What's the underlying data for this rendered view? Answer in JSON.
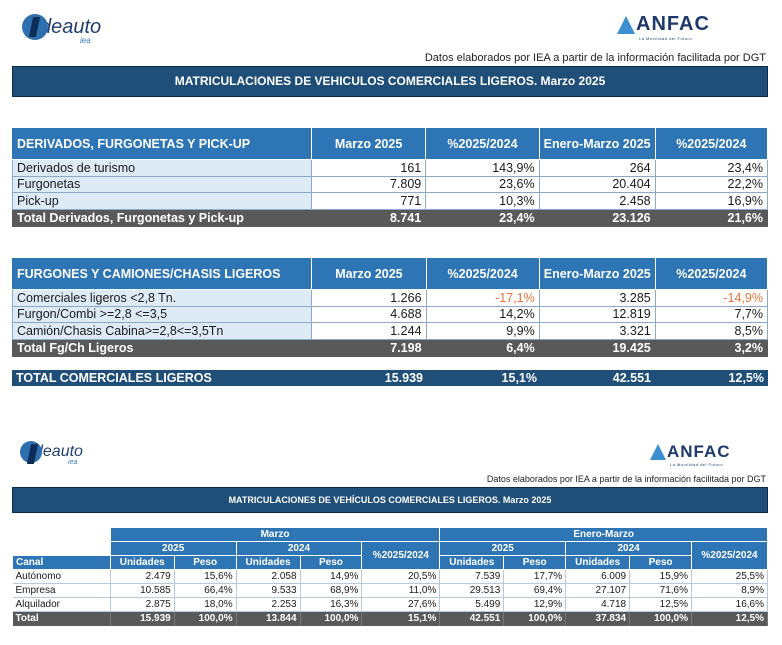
{
  "top": {
    "logo_left": {
      "word": "deauto",
      "sub": "iea"
    },
    "logo_right": {
      "word": "ANFAC",
      "tagline": "La Movilidad del Futuro"
    },
    "source_note": "Datos elaborados por IEA a partir de la información facilitada por DGT",
    "title": "MATRICULACIONES DE VEHICULOS COMERCIALES LIGEROS. Marzo 2025",
    "derivados": {
      "header": [
        "DERIVADOS, FURGONETAS Y PICK-UP",
        "Marzo 2025",
        "%2025/2024",
        "Enero-Marzo 2025",
        "%2025/2024"
      ],
      "rows": [
        [
          "Derivados de turismo",
          "161",
          "143,9%",
          "264",
          "23,4%"
        ],
        [
          "Furgonetas",
          "7.809",
          "23,6%",
          "20.404",
          "22,2%"
        ],
        [
          "Pick-up",
          "771",
          "10,3%",
          "2.458",
          "16,9%"
        ]
      ],
      "total": [
        "Total Derivados, Furgonetas y Pick-up",
        "8.741",
        "23,4%",
        "23.126",
        "21,6%"
      ]
    },
    "furgones": {
      "header": [
        "FURGONES Y CAMIONES/CHASIS LIGEROS",
        "Marzo 2025",
        "%2025/2024",
        "Enero-Marzo 2025",
        "%2025/2024"
      ],
      "rows": [
        [
          "Comerciales ligeros <2,8 Tn.",
          "1.266",
          "-17,1%",
          "3.285",
          "-14,9%"
        ],
        [
          "Furgon/Combi >=2,8 <=3,5",
          "4.688",
          "14,2%",
          "12.819",
          "7,7%"
        ],
        [
          "Camión/Chasis Cabina>=2,8<=3,5Tn",
          "1.244",
          "9,9%",
          "3.321",
          "8,5%"
        ]
      ],
      "total": [
        "Total Fg/Ch Ligeros",
        "7.198",
        "6,4%",
        "19.425",
        "3,2%"
      ]
    },
    "grand_total": [
      "TOTAL COMERCIALES LIGEROS",
      "15.939",
      "15,1%",
      "42.551",
      "12,5%"
    ]
  },
  "bottom": {
    "logo_left": {
      "word": "deauto",
      "sub": "iea"
    },
    "logo_right": {
      "word": "ANFAC",
      "tagline": "La Movilidad del Futuro"
    },
    "source_note": "Datos elaborados por IEA a partir de la información facilitada por DGT",
    "title": "MATRICULACIONES DE VEHÍCULOS COMERCIALES LIGEROS. Marzo 2025",
    "group_marzo": "Marzo",
    "group_enero": "Enero-Marzo",
    "year_2025": "2025",
    "year_2024": "2024",
    "pct": "%2025/2024",
    "canal": "Canal",
    "unidades": "Unidades",
    "peso": "Peso",
    "rows": [
      [
        "Autónomo",
        "2.479",
        "15,6%",
        "2.058",
        "14,9%",
        "20,5%",
        "7.539",
        "17,7%",
        "6.009",
        "15,9%",
        "25,5%"
      ],
      [
        "Empresa",
        "10.585",
        "66,4%",
        "9.533",
        "68,9%",
        "11,0%",
        "29.513",
        "69,4%",
        "27.107",
        "71,6%",
        "8,9%"
      ],
      [
        "Alquilador",
        "2.875",
        "18,0%",
        "2.253",
        "16,3%",
        "27,6%",
        "5.499",
        "12,9%",
        "4.718",
        "12,5%",
        "16,6%"
      ]
    ],
    "total": [
      "Total",
      "15.939",
      "100,0%",
      "13.844",
      "100,0%",
      "15,1%",
      "42.551",
      "100,0%",
      "37.834",
      "100,0%",
      "12,5%"
    ]
  },
  "colors": {
    "header_blue": "#2e75b6",
    "title_navy": "#1f4e79",
    "row_light": "#ddebf7",
    "total_gray": "#595959",
    "negative": "#e8733a"
  }
}
